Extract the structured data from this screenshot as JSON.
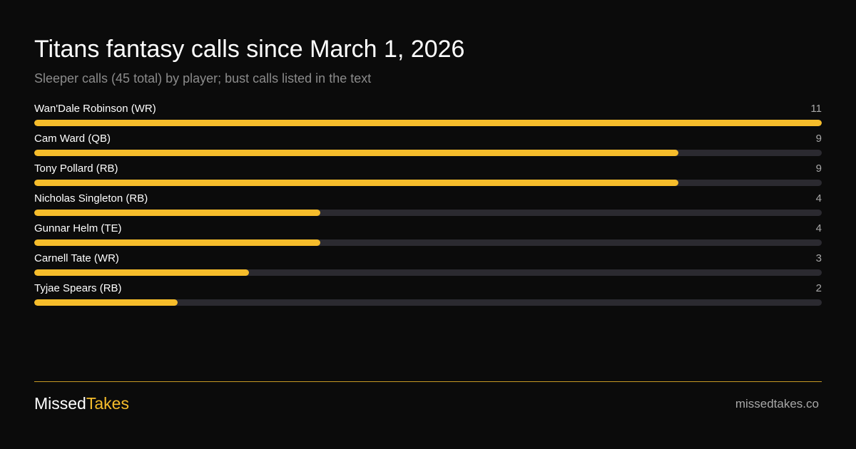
{
  "title": "Titans fantasy calls since March 1, 2026",
  "subtitle": "Sleeper calls (45 total) by player; bust calls listed in the text",
  "colors": {
    "background": "#0b0b0b",
    "accent": "#f6bd2b",
    "track": "#2b2a30",
    "muted": "#8b8b8b"
  },
  "chart_data": {
    "type": "bar",
    "orientation": "horizontal",
    "title": "Titans fantasy calls since March 1, 2026",
    "subtitle": "Sleeper calls (45 total) by player; bust calls listed in the text",
    "categories": [
      "Wan'Dale Robinson (WR)",
      "Cam Ward (QB)",
      "Tony Pollard (RB)",
      "Nicholas Singleton (RB)",
      "Gunnar Helm (TE)",
      "Carnell Tate (WR)",
      "Tyjae Spears (RB)"
    ],
    "values": [
      11,
      9,
      9,
      4,
      4,
      3,
      2
    ],
    "xlim": [
      0,
      11
    ],
    "grid": false,
    "legend": "none"
  },
  "footer": {
    "brand_part1": "Missed",
    "brand_part2": "Takes",
    "site": "missedtakes.co"
  }
}
